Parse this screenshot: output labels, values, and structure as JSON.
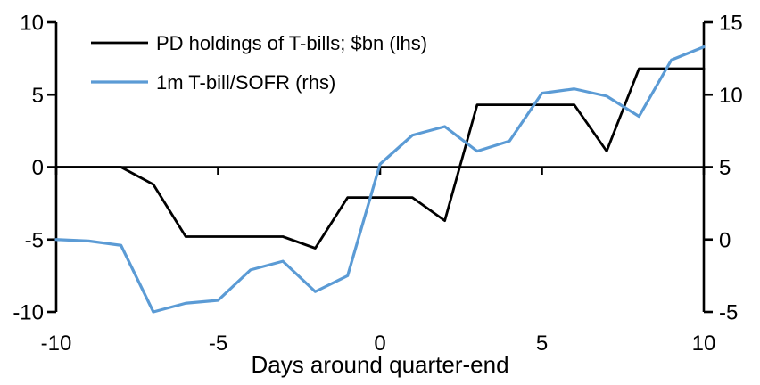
{
  "chart_data": {
    "type": "line",
    "title": "",
    "xlabel": "Days around quarter-end",
    "grid": false,
    "legend_position": "top-left",
    "x_axis": {
      "min": -10,
      "max": 10,
      "ticks": [
        -10,
        -5,
        0,
        5,
        10
      ]
    },
    "left_axis": {
      "min": -10,
      "max": 10,
      "ticks": [
        10,
        5,
        0,
        -5,
        -10
      ]
    },
    "right_axis": {
      "min": -5,
      "max": 15,
      "ticks": [
        15,
        10,
        5,
        0,
        -5
      ]
    },
    "x": [
      -10,
      -9,
      -8,
      -7,
      -6,
      -5,
      -4,
      -3,
      -2,
      -1,
      0,
      1,
      2,
      3,
      4,
      5,
      6,
      7,
      8,
      9,
      10
    ],
    "series": [
      {
        "name": "PD holdings of T-bills; $bn (lhs)",
        "axis": "left",
        "color": "#000000",
        "values": [
          0,
          0,
          0,
          -1.2,
          -4.8,
          -4.8,
          -4.8,
          -4.8,
          -5.6,
          -2.1,
          -2.1,
          -2.1,
          -3.7,
          4.3,
          4.3,
          4.3,
          4.3,
          1.1,
          6.8,
          6.8,
          6.8
        ]
      },
      {
        "name": "1m T-bill/SOFR (rhs)",
        "axis": "right",
        "color": "#5B9BD5",
        "values": [
          0.0,
          -0.1,
          -0.4,
          -5.0,
          -4.4,
          -4.2,
          -2.1,
          -1.5,
          -3.6,
          -2.5,
          5.2,
          7.2,
          7.8,
          6.1,
          6.8,
          10.1,
          10.4,
          9.9,
          8.5,
          12.4,
          13.3
        ]
      }
    ]
  }
}
